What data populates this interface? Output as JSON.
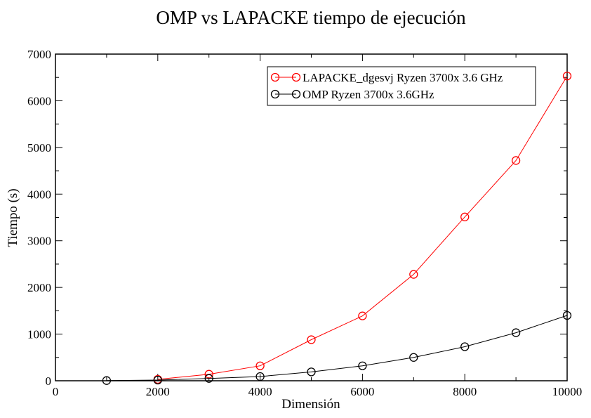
{
  "chart_data": {
    "type": "line",
    "title": "OMP vs LAPACKE tiempo de ejecución",
    "xlabel": "Dimensión",
    "ylabel": "Tiempo (s)",
    "xlim": [
      0,
      10000
    ],
    "ylim": [
      0,
      7000
    ],
    "xticks": [
      0,
      2000,
      4000,
      6000,
      8000,
      10000
    ],
    "yticks": [
      0,
      1000,
      2000,
      3000,
      4000,
      5000,
      6000,
      7000
    ],
    "grid": false,
    "legend_position": "top-right",
    "series": [
      {
        "name": "LAPACKE_dgesvj Ryzen 3700x 3.6 GHz",
        "color": "#ff0000",
        "marker": "circle",
        "x": [
          2000,
          3000,
          4000,
          5000,
          6000,
          7000,
          8000,
          9000,
          10000
        ],
        "y": [
          30,
          140,
          320,
          880,
          1390,
          2280,
          3510,
          4720,
          6530
        ]
      },
      {
        "name": "OMP Ryzen 3700x 3.6GHz",
        "color": "#000000",
        "marker": "circle",
        "x": [
          1000,
          2000,
          3000,
          4000,
          5000,
          6000,
          7000,
          8000,
          9000,
          10000
        ],
        "y": [
          5,
          15,
          50,
          90,
          190,
          320,
          500,
          730,
          1030,
          1400
        ]
      }
    ]
  }
}
